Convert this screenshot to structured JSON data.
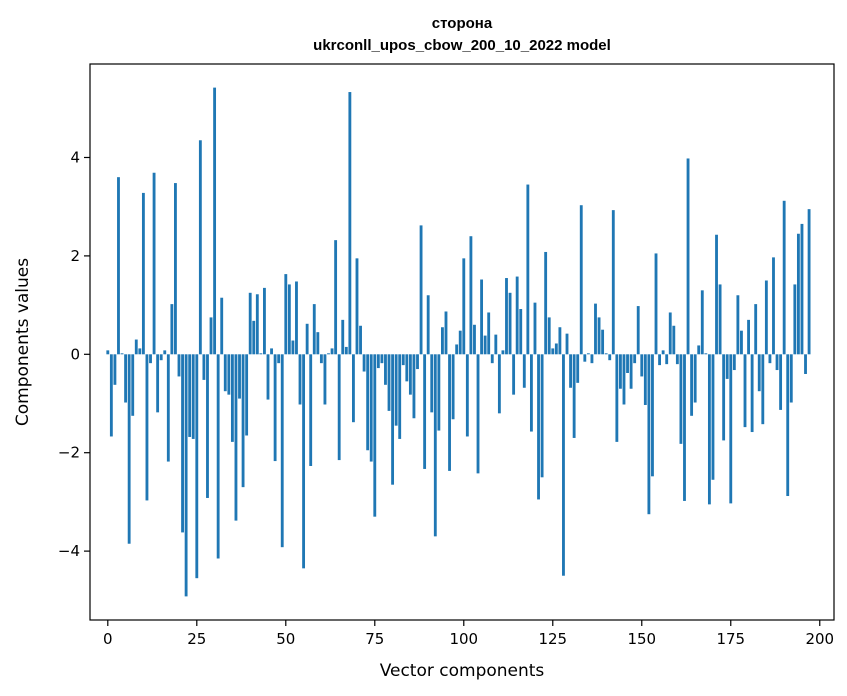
{
  "chart_data": {
    "type": "bar",
    "title": "сторона",
    "subtitle": "ukrconll_upos_cbow_200_10_2022 model",
    "xlabel": "Vector components",
    "ylabel": "Components values",
    "xlim": [
      -5,
      204
    ],
    "ylim": [
      -5.4,
      5.9
    ],
    "xticks": [
      0,
      25,
      50,
      75,
      100,
      125,
      150,
      175,
      200
    ],
    "yticks": [
      -4,
      -2,
      0,
      2,
      4
    ],
    "grid": false,
    "color": "#1f77b4",
    "values": [
      0.08,
      -1.67,
      -0.62,
      3.6,
      0.02,
      -0.98,
      -3.85,
      -1.25,
      0.3,
      0.12,
      3.28,
      -2.97,
      -0.18,
      3.69,
      -1.18,
      -0.12,
      0.08,
      -2.18,
      1.02,
      3.48,
      -0.45,
      -3.62,
      -4.92,
      -1.68,
      -1.72,
      -4.55,
      4.35,
      -0.52,
      -2.92,
      0.75,
      5.42,
      -4.15,
      1.15,
      -0.75,
      -0.82,
      -1.78,
      -3.38,
      -0.9,
      -2.7,
      -1.65,
      1.25,
      0.68,
      1.22,
      0.02,
      1.35,
      -0.92,
      0.12,
      -2.17,
      -0.18,
      -3.92,
      1.63,
      1.42,
      0.28,
      1.48,
      -1.02,
      -4.35,
      0.62,
      -2.27,
      1.02,
      0.45,
      -0.18,
      -1.02,
      0.02,
      0.12,
      2.32,
      -2.15,
      0.7,
      0.15,
      5.33,
      -1.38,
      1.95,
      0.58,
      -0.35,
      -1.95,
      -2.18,
      -3.3,
      -0.28,
      -0.18,
      -0.62,
      -1.15,
      -2.65,
      -1.45,
      -1.72,
      -0.22,
      -0.55,
      -0.82,
      -1.3,
      -0.3,
      2.62,
      -2.33,
      1.2,
      -1.18,
      -3.7,
      -1.55,
      0.55,
      0.87,
      -2.37,
      -1.32,
      0.2,
      0.48,
      1.95,
      -1.67,
      2.4,
      0.6,
      -2.42,
      1.52,
      0.38,
      0.85,
      -0.18,
      0.4,
      -1.2,
      0.08,
      1.55,
      1.25,
      -0.82,
      1.58,
      0.92,
      -0.68,
      3.45,
      -1.57,
      1.05,
      -2.95,
      -2.5,
      2.08,
      0.75,
      0.12,
      0.22,
      0.55,
      -4.5,
      0.42,
      -0.68,
      -1.7,
      -0.58,
      3.03,
      -0.15,
      0.02,
      -0.18,
      1.03,
      0.75,
      0.5,
      0.02,
      -0.12,
      2.93,
      -1.78,
      -0.7,
      -1.02,
      -0.38,
      -0.7,
      -0.18,
      0.98,
      -0.45,
      -1.03,
      -3.25,
      -2.48,
      2.05,
      -0.22,
      0.08,
      -0.2,
      0.85,
      0.58,
      -0.2,
      -1.82,
      -2.98,
      3.98,
      -1.25,
      -0.98,
      0.18,
      1.3,
      0.02,
      -3.05,
      -2.55,
      2.43,
      1.42,
      -1.75,
      -0.5,
      -3.03,
      -0.32,
      1.2,
      0.48,
      -1.48,
      0.7,
      -1.58,
      1.02,
      -0.75,
      -1.42,
      1.5,
      -0.18,
      1.97,
      -0.32,
      -1.13,
      3.12,
      -2.88,
      -0.98,
      1.42,
      2.45,
      2.65,
      -0.4,
      2.95
    ]
  }
}
